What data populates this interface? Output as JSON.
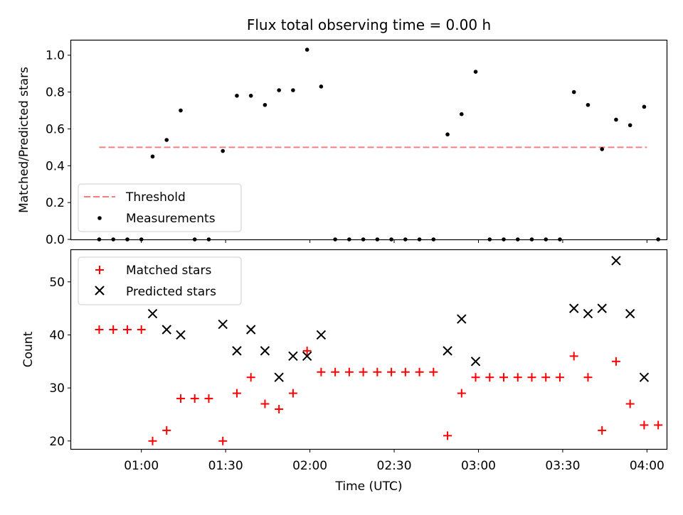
{
  "chart_data": [
    {
      "type": "scatter",
      "title": "Flux total observing time = 0.00 h",
      "xlabel": "",
      "ylabel": "Matched/Predicted stars",
      "ylim": [
        0,
        1.08
      ],
      "yticks": [
        "0.0",
        "0.2",
        "0.4",
        "0.6",
        "0.8",
        "1.0"
      ],
      "legend": {
        "placement": "lower-left",
        "entries": [
          "Threshold",
          "Measurements"
        ]
      },
      "series": [
        {
          "name": "Threshold",
          "style": "dashed-line",
          "color": "#f08080",
          "points": [
            [
              "00:45",
              0.5
            ],
            [
              "04:00",
              0.5
            ]
          ]
        },
        {
          "name": "Measurements",
          "style": "dot",
          "color": "#000000",
          "points": [
            [
              "00:45",
              0.0
            ],
            [
              "00:50",
              0.0
            ],
            [
              "00:55",
              0.0
            ],
            [
              "01:00",
              0.0
            ],
            [
              "01:04",
              0.45
            ],
            [
              "01:09",
              0.54
            ],
            [
              "01:14",
              0.7
            ],
            [
              "01:19",
              0.0
            ],
            [
              "01:24",
              0.0
            ],
            [
              "01:29",
              0.48
            ],
            [
              "01:34",
              0.78
            ],
            [
              "01:39",
              0.78
            ],
            [
              "01:44",
              0.73
            ],
            [
              "01:49",
              0.81
            ],
            [
              "01:54",
              0.81
            ],
            [
              "01:59",
              1.03
            ],
            [
              "02:04",
              0.83
            ],
            [
              "02:09",
              0.0
            ],
            [
              "02:14",
              0.0
            ],
            [
              "02:19",
              0.0
            ],
            [
              "02:24",
              0.0
            ],
            [
              "02:29",
              0.0
            ],
            [
              "02:34",
              0.0
            ],
            [
              "02:39",
              0.0
            ],
            [
              "02:44",
              0.0
            ],
            [
              "02:49",
              0.57
            ],
            [
              "02:54",
              0.68
            ],
            [
              "02:59",
              0.91
            ],
            [
              "03:04",
              0.0
            ],
            [
              "03:09",
              0.0
            ],
            [
              "03:14",
              0.0
            ],
            [
              "03:19",
              0.0
            ],
            [
              "03:24",
              0.0
            ],
            [
              "03:29",
              0.0
            ],
            [
              "03:34",
              0.8
            ],
            [
              "03:39",
              0.73
            ],
            [
              "03:44",
              0.49
            ],
            [
              "03:49",
              0.65
            ],
            [
              "03:54",
              0.62
            ],
            [
              "03:59",
              0.72
            ],
            [
              "04:04",
              0.0
            ]
          ]
        }
      ]
    },
    {
      "type": "scatter",
      "title": "",
      "xlabel": "Time (UTC)",
      "ylabel": "Count",
      "ylim": [
        18.5,
        56
      ],
      "yticks": [
        "20",
        "30",
        "40",
        "50"
      ],
      "xlim": [
        "00:35",
        "04:07"
      ],
      "xticks": [
        "01:00",
        "01:30",
        "02:00",
        "02:30",
        "03:00",
        "03:30",
        "04:00"
      ],
      "legend": {
        "placement": "top-left",
        "entries": [
          "Matched stars",
          "Predicted stars"
        ]
      },
      "series": [
        {
          "name": "Matched stars",
          "marker": "plus",
          "color": "#ff0000",
          "points": [
            [
              "00:45",
              41
            ],
            [
              "00:50",
              41
            ],
            [
              "00:55",
              41
            ],
            [
              "01:00",
              41
            ],
            [
              "01:04",
              20
            ],
            [
              "01:09",
              22
            ],
            [
              "01:14",
              28
            ],
            [
              "01:19",
              28
            ],
            [
              "01:24",
              28
            ],
            [
              "01:29",
              20
            ],
            [
              "01:34",
              29
            ],
            [
              "01:39",
              32
            ],
            [
              "01:44",
              27
            ],
            [
              "01:49",
              26
            ],
            [
              "01:54",
              29
            ],
            [
              "01:59",
              37
            ],
            [
              "02:04",
              33
            ],
            [
              "02:09",
              33
            ],
            [
              "02:14",
              33
            ],
            [
              "02:19",
              33
            ],
            [
              "02:24",
              33
            ],
            [
              "02:29",
              33
            ],
            [
              "02:34",
              33
            ],
            [
              "02:39",
              33
            ],
            [
              "02:44",
              33
            ],
            [
              "02:49",
              21
            ],
            [
              "02:54",
              29
            ],
            [
              "02:59",
              32
            ],
            [
              "03:04",
              32
            ],
            [
              "03:09",
              32
            ],
            [
              "03:14",
              32
            ],
            [
              "03:19",
              32
            ],
            [
              "03:24",
              32
            ],
            [
              "03:29",
              32
            ],
            [
              "03:34",
              36
            ],
            [
              "03:39",
              32
            ],
            [
              "03:44",
              22
            ],
            [
              "03:49",
              35
            ],
            [
              "03:54",
              27
            ],
            [
              "03:59",
              23
            ],
            [
              "04:04",
              23
            ]
          ]
        },
        {
          "name": "Predicted stars",
          "marker": "x",
          "color": "#000000",
          "points": [
            [
              "01:04",
              44
            ],
            [
              "01:09",
              41
            ],
            [
              "01:14",
              40
            ],
            [
              "01:29",
              42
            ],
            [
              "01:34",
              37
            ],
            [
              "01:39",
              41
            ],
            [
              "01:44",
              37
            ],
            [
              "01:49",
              32
            ],
            [
              "01:54",
              36
            ],
            [
              "01:59",
              36
            ],
            [
              "02:04",
              40
            ],
            [
              "02:49",
              37
            ],
            [
              "02:54",
              43
            ],
            [
              "02:59",
              35
            ],
            [
              "03:34",
              45
            ],
            [
              "03:39",
              44
            ],
            [
              "03:44",
              45
            ],
            [
              "03:49",
              54
            ],
            [
              "03:54",
              44
            ],
            [
              "03:59",
              32
            ]
          ]
        }
      ]
    }
  ]
}
